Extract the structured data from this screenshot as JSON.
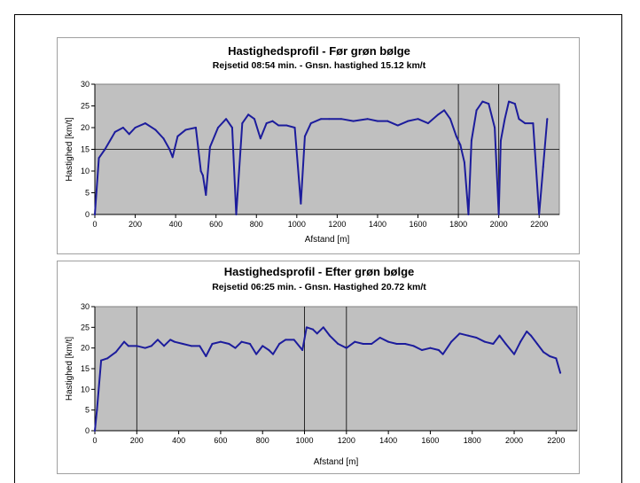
{
  "chart_data": [
    {
      "type": "line",
      "title": "Hastighedsprofil - Før grøn bølge",
      "subtitle": "Rejsetid 08:54 min. - Gnsn. hastighed 15.12 km/t",
      "xlabel": "Afstand [m]",
      "ylabel": "Hastighed [km/t]",
      "xlim": [
        0,
        2300
      ],
      "ylim": [
        0,
        30
      ],
      "xticks": [
        "0",
        "200",
        "400",
        "600",
        "800",
        "1000",
        "1200",
        "1400",
        "1600",
        "1800",
        "2000",
        "2200"
      ],
      "yticks": [
        "0",
        "5",
        "10",
        "15",
        "20",
        "25",
        "30"
      ],
      "plot_background": "#c0c0c0",
      "line_color": "#1c1c9c",
      "reference_lines": {
        "horizontal": [
          15
        ],
        "vertical": [
          1800,
          2000
        ]
      },
      "series": [
        {
          "x": [
            0,
            20,
            50,
            100,
            140,
            170,
            200,
            250,
            300,
            340,
            370,
            385,
            410,
            450,
            500,
            525,
            535,
            550,
            570,
            610,
            650,
            680,
            700,
            730,
            760,
            790,
            820,
            850,
            880,
            910,
            950,
            990,
            1020,
            1040,
            1070,
            1120,
            1160,
            1220,
            1280,
            1350,
            1400,
            1450,
            1500,
            1550,
            1600,
            1650,
            1700,
            1730,
            1760,
            1790,
            1810,
            1830,
            1850,
            1865,
            1890,
            1920,
            1950,
            1980,
            2000,
            2010,
            2030,
            2050,
            2080,
            2100,
            2130,
            2170,
            2200,
            2220,
            2240
          ],
          "y": [
            0,
            13,
            15,
            19,
            20,
            18.5,
            20,
            21,
            19.5,
            17.5,
            15,
            13.2,
            18,
            19.5,
            20,
            10,
            9,
            4.5,
            15.5,
            20,
            22,
            20,
            0,
            21,
            23,
            22,
            17.5,
            21,
            21.5,
            20.5,
            20.5,
            20,
            2.5,
            18,
            21,
            22,
            22,
            22,
            21.5,
            22,
            21.5,
            21.5,
            20.5,
            21.5,
            22,
            21,
            23,
            24,
            22,
            18,
            16,
            12,
            0,
            17,
            24,
            26,
            25.5,
            20,
            0,
            17,
            22,
            26,
            25.5,
            22,
            21,
            21,
            0,
            11,
            22
          ]
        }
      ]
    },
    {
      "type": "line",
      "title": "Hastighedsprofil - Efter grøn bølge",
      "subtitle": "Rejsetid 06:25 min. - Gnsn. Hastighed 20.72 km/t",
      "xlabel": "Afstand [m]",
      "ylabel": "Hastighed [km/t]",
      "xlim": [
        0,
        2300
      ],
      "ylim": [
        0,
        30
      ],
      "xticks": [
        "0",
        "200",
        "400",
        "600",
        "800",
        "1000",
        "1200",
        "1400",
        "1600",
        "1800",
        "2000",
        "2200"
      ],
      "yticks": [
        "0",
        "5",
        "10",
        "15",
        "20",
        "25",
        "30"
      ],
      "plot_background": "#c0c0c0",
      "line_color": "#1c1c9c",
      "reference_lines": {
        "horizontal": [],
        "vertical": [
          200,
          1000,
          1200
        ]
      },
      "series": [
        {
          "x": [
            0,
            10,
            30,
            60,
            100,
            140,
            160,
            200,
            240,
            270,
            300,
            330,
            360,
            380,
            420,
            460,
            500,
            530,
            560,
            600,
            640,
            670,
            700,
            740,
            770,
            800,
            830,
            850,
            880,
            910,
            950,
            990,
            1010,
            1040,
            1060,
            1090,
            1120,
            1160,
            1200,
            1240,
            1280,
            1320,
            1360,
            1400,
            1440,
            1480,
            1520,
            1560,
            1600,
            1640,
            1660,
            1700,
            1740,
            1780,
            1820,
            1860,
            1900,
            1930,
            1960,
            2000,
            2030,
            2060,
            2080,
            2110,
            2140,
            2170,
            2200,
            2220
          ],
          "y": [
            0,
            5,
            17,
            17.5,
            19,
            21.5,
            20.5,
            20.5,
            20,
            20.5,
            22,
            20.5,
            22,
            21.5,
            21,
            20.5,
            20.5,
            18,
            21,
            21.5,
            21,
            20,
            21.5,
            21,
            18.5,
            20.5,
            19.5,
            18.5,
            21,
            22,
            22,
            19.5,
            25,
            24.5,
            23.5,
            25,
            23,
            21,
            20,
            21.5,
            21,
            21,
            22.5,
            21.5,
            21,
            21,
            20.5,
            19.5,
            20,
            19.5,
            18.5,
            21.5,
            23.5,
            23,
            22.5,
            21.5,
            21,
            23,
            21,
            18.5,
            21.5,
            24,
            23,
            21,
            19,
            18,
            17.5,
            14
          ]
        }
      ]
    }
  ]
}
